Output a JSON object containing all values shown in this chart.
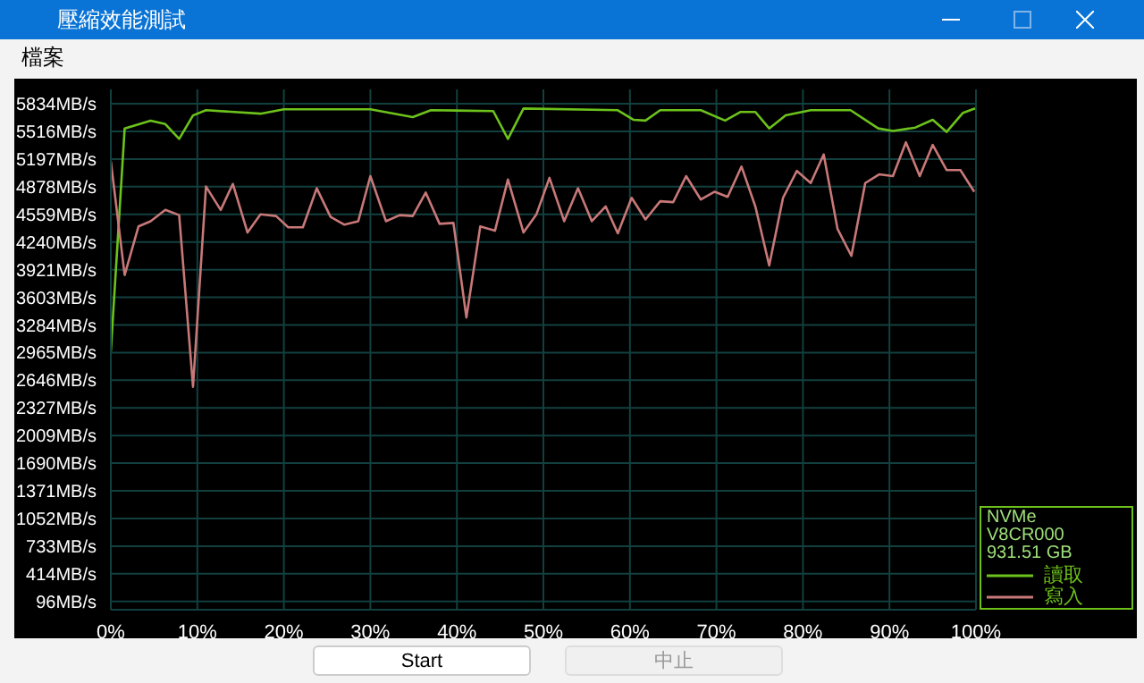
{
  "chart_data": {
    "type": "line",
    "title": "壓縮效能測試",
    "annotations": [
      "檔案",
      "Start",
      "中止",
      "NVMe",
      "V8CR000",
      "931.51 GB"
    ],
    "xlim": [
      0,
      100
    ],
    "xticks": [
      {
        "value": 0,
        "label": "0%"
      },
      {
        "value": 10,
        "label": "10%"
      },
      {
        "value": 20,
        "label": "20%"
      },
      {
        "value": 30,
        "label": "30%"
      },
      {
        "value": 40,
        "label": "40%"
      },
      {
        "value": 50,
        "label": "50%"
      },
      {
        "value": 60,
        "label": "60%"
      },
      {
        "value": 70,
        "label": "70%"
      },
      {
        "value": 80,
        "label": "80%"
      },
      {
        "value": 90,
        "label": "90%"
      },
      {
        "value": 100,
        "label": "100%"
      }
    ],
    "ylim": [
      0,
      6000
    ],
    "yticks": [
      {
        "value": 96,
        "label": "96MB/s"
      },
      {
        "value": 414,
        "label": "414MB/s"
      },
      {
        "value": 733,
        "label": "733MB/s"
      },
      {
        "value": 1052,
        "label": "1052MB/s"
      },
      {
        "value": 1371,
        "label": "1371MB/s"
      },
      {
        "value": 1690,
        "label": "1690MB/s"
      },
      {
        "value": 2009,
        "label": "2009MB/s"
      },
      {
        "value": 2327,
        "label": "2327MB/s"
      },
      {
        "value": 2646,
        "label": "2646MB/s"
      },
      {
        "value": 2965,
        "label": "2965MB/s"
      },
      {
        "value": 3284,
        "label": "3284MB/s"
      },
      {
        "value": 3603,
        "label": "3603MB/s"
      },
      {
        "value": 3921,
        "label": "3921MB/s"
      },
      {
        "value": 4240,
        "label": "4240MB/s"
      },
      {
        "value": 4559,
        "label": "4559MB/s"
      },
      {
        "value": 4878,
        "label": "4878MB/s"
      },
      {
        "value": 5197,
        "label": "5197MB/s"
      },
      {
        "value": 5516,
        "label": "5516MB/s"
      },
      {
        "value": 5834,
        "label": "5834MB/s"
      }
    ],
    "grid": true,
    "legend": "bottom right",
    "marker": "none",
    "line_style": "solid",
    "series": [
      {
        "name": "讀取",
        "color": "#6cc21b",
        "x": [
          0,
          1.6,
          4.6,
          6.3,
          7.9,
          9.5,
          11,
          17.3,
          20,
          30,
          34.9,
          37,
          44.2,
          45.9,
          47.7,
          58.6,
          60.4,
          61.8,
          63.5,
          68.2,
          71,
          72.8,
          74.5,
          76.1,
          78,
          80.9,
          85.5,
          88.7,
          90.4,
          93,
          95,
          96.6,
          98.5,
          99.9
        ],
        "values": [
          2980,
          5550,
          5640,
          5600,
          5430,
          5700,
          5760,
          5720,
          5770,
          5770,
          5680,
          5760,
          5750,
          5430,
          5780,
          5760,
          5650,
          5640,
          5760,
          5760,
          5640,
          5740,
          5740,
          5550,
          5700,
          5760,
          5760,
          5550,
          5520,
          5560,
          5650,
          5510,
          5730,
          5780
        ]
      },
      {
        "name": "寫入",
        "color": "#c87878",
        "x": [
          0,
          1.6,
          3.2,
          4.6,
          6.3,
          7.9,
          9.5,
          11,
          12.7,
          14.1,
          15.8,
          17.3,
          19.1,
          20.5,
          22.2,
          23.8,
          25.4,
          27,
          28.6,
          30,
          31.8,
          33.4,
          34.9,
          36.4,
          38,
          39.6,
          41.1,
          42.7,
          44.4,
          45.9,
          47.7,
          49.2,
          50.7,
          52.4,
          54,
          55.6,
          57.2,
          58.6,
          60.2,
          61.8,
          63.5,
          65,
          66.5,
          68.2,
          69.8,
          71.3,
          72.9,
          74.5,
          76.1,
          77.7,
          79.3,
          80.9,
          82.4,
          84,
          85.6,
          87.2,
          88.8,
          90.4,
          91.9,
          93.5,
          95,
          96.6,
          98.2,
          99.8
        ],
        "values": [
          5170,
          3860,
          4420,
          4480,
          4610,
          4550,
          2570,
          4880,
          4610,
          4910,
          4350,
          4560,
          4540,
          4410,
          4410,
          4860,
          4530,
          4440,
          4480,
          5000,
          4480,
          4550,
          4540,
          4810,
          4450,
          4460,
          3370,
          4420,
          4370,
          4960,
          4350,
          4560,
          4980,
          4480,
          4860,
          4480,
          4650,
          4340,
          4750,
          4500,
          4710,
          4700,
          5000,
          4730,
          4820,
          4760,
          5110,
          4650,
          3970,
          4750,
          5060,
          4920,
          5250,
          4390,
          4080,
          4920,
          5020,
          5000,
          5390,
          5000,
          5360,
          5070,
          5070,
          4820
        ]
      }
    ]
  }
}
